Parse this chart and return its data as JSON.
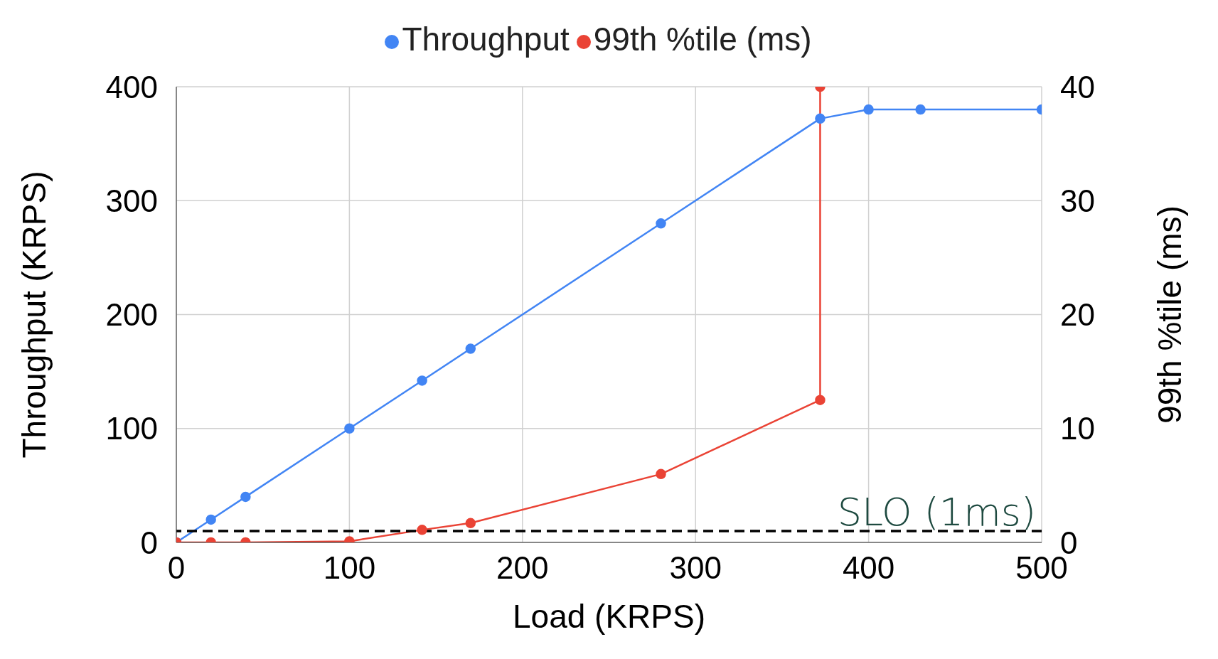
{
  "chart_data": {
    "type": "line",
    "xlabel": "Load (KRPS)",
    "ylabel": "Throughput (KRPS)",
    "y2label": "99th %tile (ms)",
    "series": [
      {
        "name": "Throughput",
        "color": "#4285f4",
        "x": [
          0,
          20,
          40,
          100,
          142,
          170,
          280,
          372,
          400,
          430,
          500
        ],
        "values": [
          0,
          20,
          40,
          100,
          142,
          170,
          280,
          372,
          380,
          380,
          380
        ]
      },
      {
        "name": "99th %tile (ms)",
        "color": "#ea4335",
        "axis": "y2",
        "x": [
          0,
          20,
          40,
          100,
          142,
          170,
          280,
          372,
          372
        ],
        "values": [
          0,
          0,
          0,
          0.1,
          1.1,
          1.7,
          6,
          12.5,
          40
        ]
      }
    ],
    "xlim": [
      0,
      500
    ],
    "xticks": [
      0,
      100,
      200,
      300,
      400,
      500
    ],
    "ylim": [
      0,
      400
    ],
    "yticks": [
      0,
      100,
      200,
      300,
      400
    ],
    "y2lim": [
      0,
      40
    ],
    "y2ticks": [
      0,
      10,
      20,
      30,
      40
    ],
    "ref_lines": [
      {
        "axis": "y2",
        "value": 1,
        "label": "SLO (1ms)",
        "color": "#000000",
        "line_style": "dashed"
      }
    ],
    "grid": true,
    "legend": "top",
    "marker": "circle",
    "line_style": "solid"
  }
}
